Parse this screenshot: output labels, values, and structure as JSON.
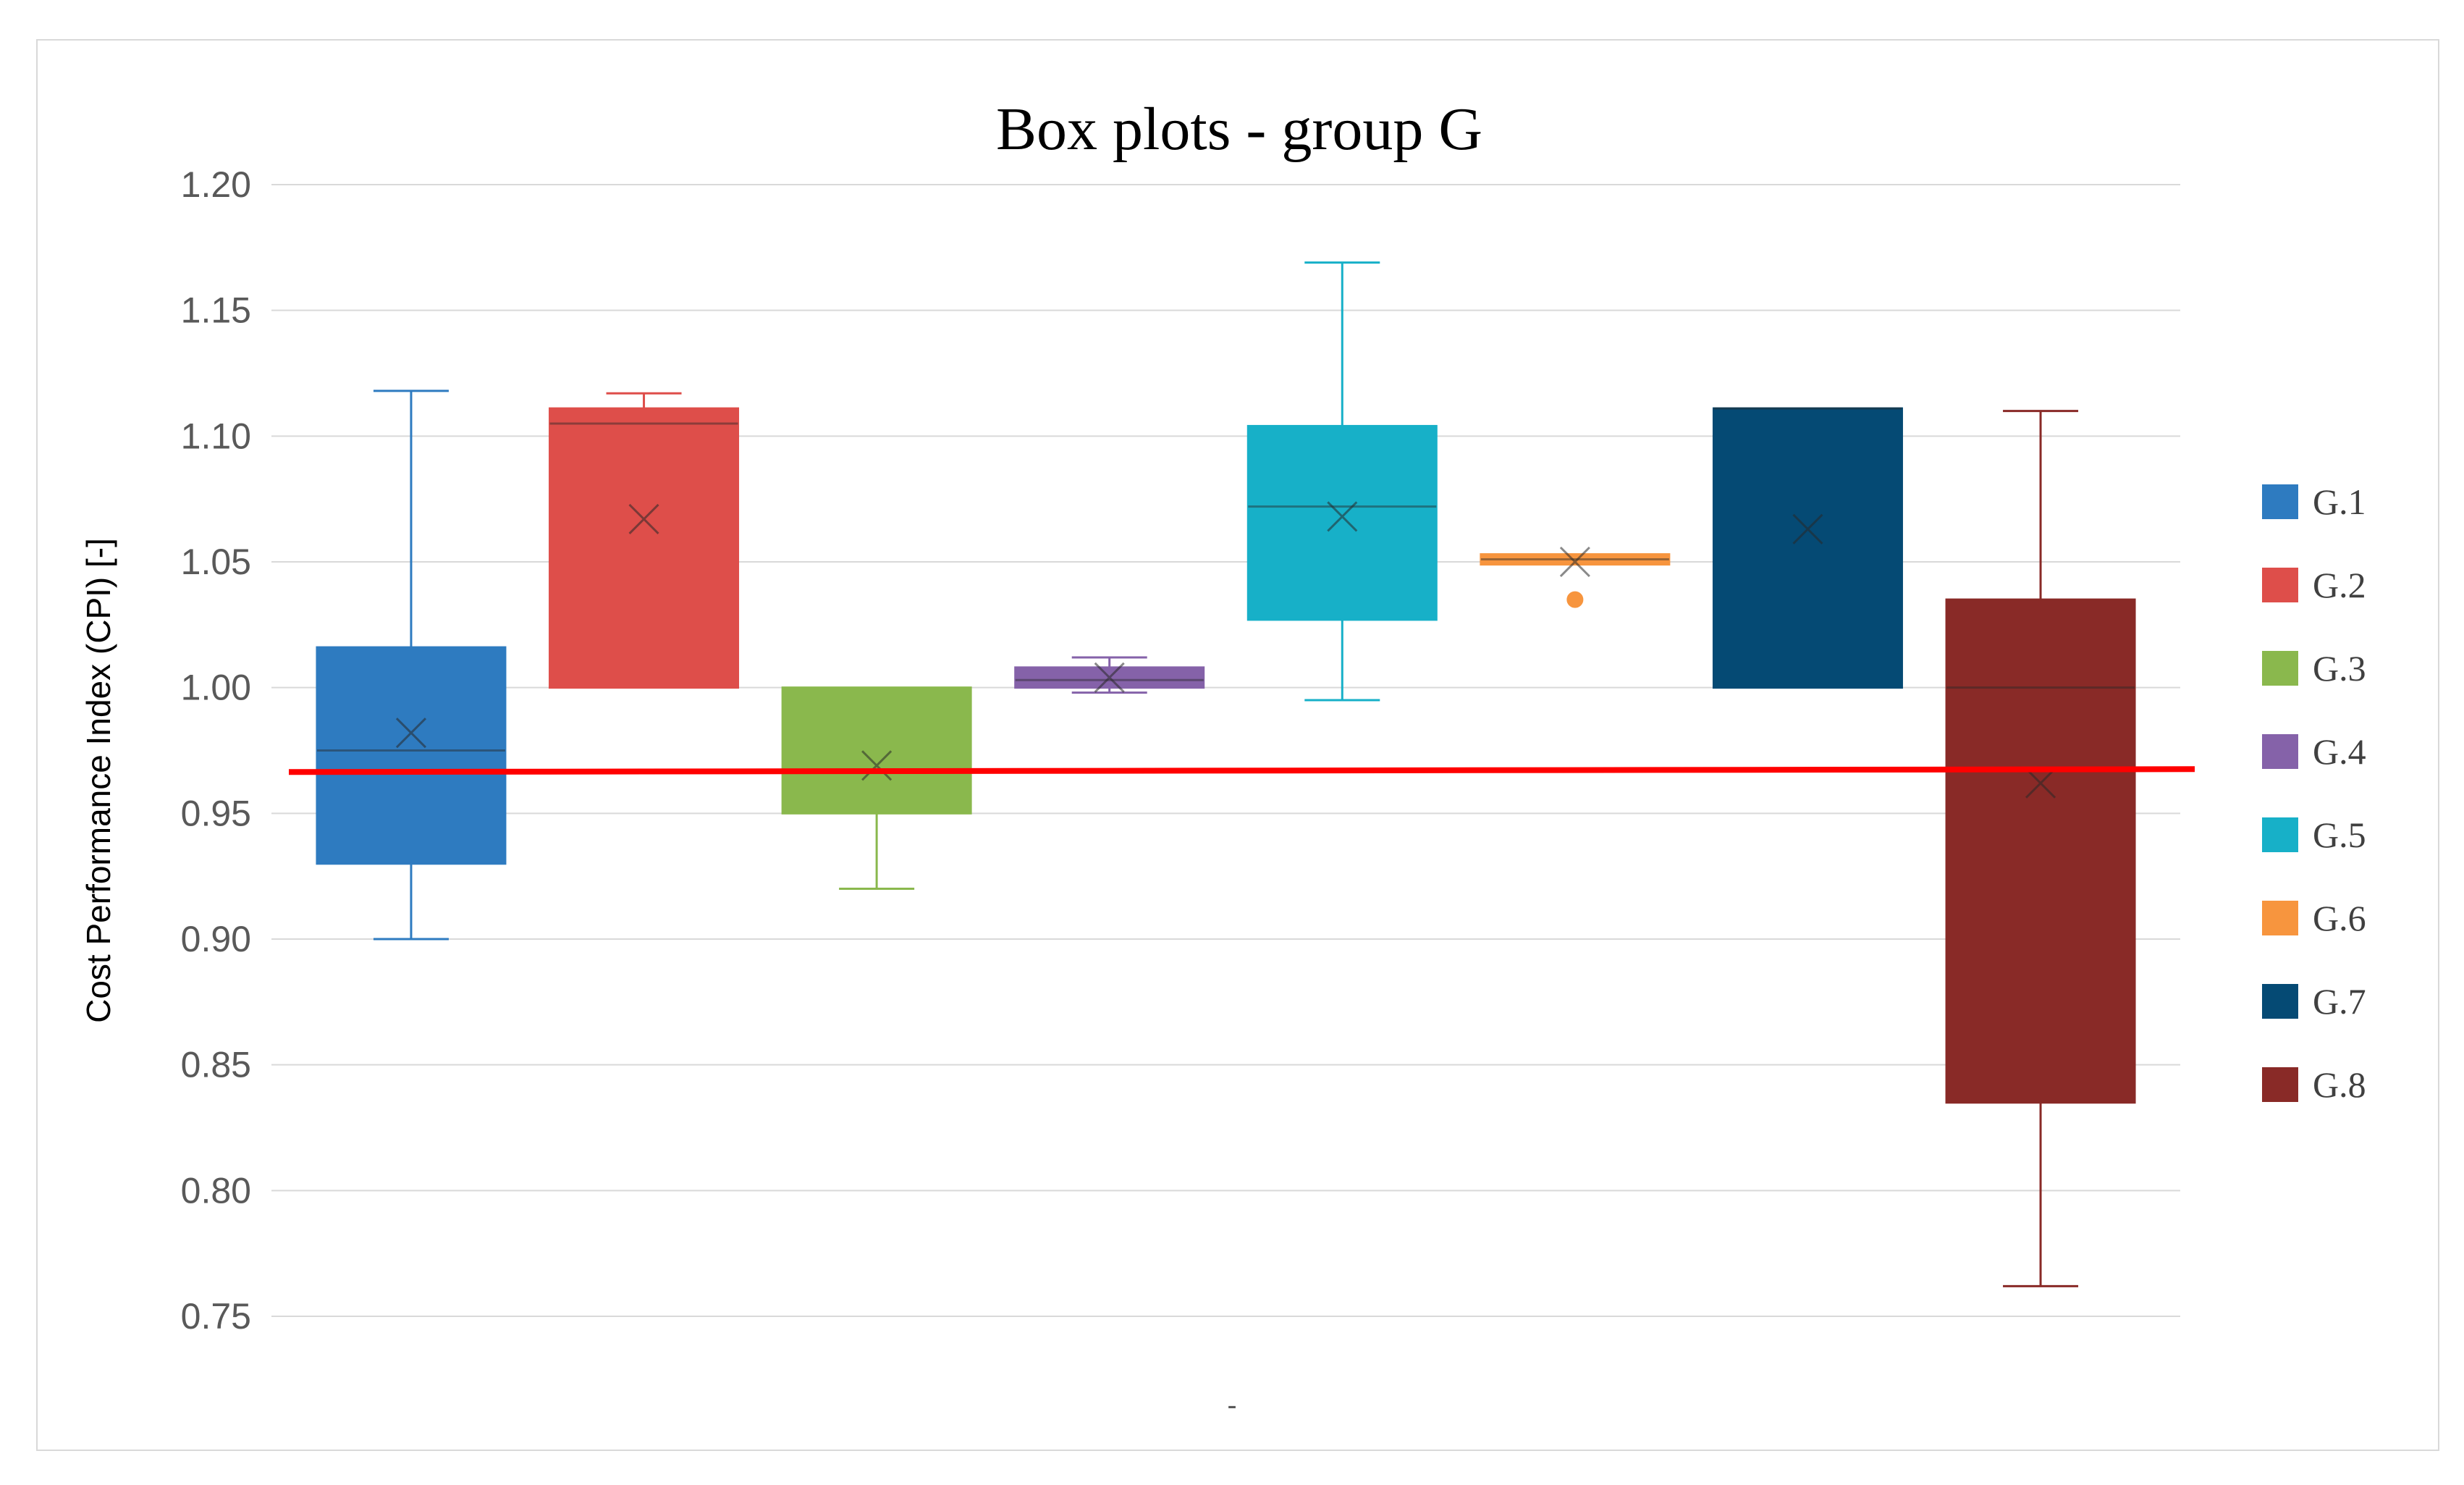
{
  "chart_data": {
    "type": "box",
    "title": "Box plots - group G",
    "xlabel": "-",
    "ylabel": "Cost Performance Index (CPI) [-]",
    "ylim": [
      0.75,
      1.2
    ],
    "yticks": [
      "0.75",
      "0.80",
      "0.85",
      "0.90",
      "0.95",
      "1.00",
      "1.05",
      "1.10",
      "1.15",
      "1.20"
    ],
    "grid": true,
    "legend_position": "right",
    "reference_line": {
      "y": 0.967,
      "color": "#ff0000"
    },
    "series": [
      {
        "name": "G.1",
        "color": "#2e7bc0",
        "min": 0.9,
        "q1": 0.93,
        "median": 0.975,
        "q3": 1.016,
        "max": 1.118,
        "mean": 0.982,
        "outliers": []
      },
      {
        "name": "G.2",
        "color": "#de4e4a",
        "min": 1.0,
        "q1": 1.0,
        "median": 1.105,
        "q3": 1.111,
        "max": 1.117,
        "mean": 1.067,
        "outliers": []
      },
      {
        "name": "G.3",
        "color": "#8ab84d",
        "min": 0.92,
        "q1": 0.95,
        "median": 0.967,
        "q3": 1.0,
        "max": 1.0,
        "mean": 0.969,
        "outliers": []
      },
      {
        "name": "G.4",
        "color": "#8562a9",
        "min": 0.998,
        "q1": 1.0,
        "median": 1.003,
        "q3": 1.008,
        "max": 1.012,
        "mean": 1.004,
        "outliers": []
      },
      {
        "name": "G.5",
        "color": "#17b0c8",
        "min": 0.995,
        "q1": 1.027,
        "median": 1.072,
        "q3": 1.104,
        "max": 1.169,
        "mean": 1.068,
        "outliers": []
      },
      {
        "name": "G.6",
        "color": "#f7953e",
        "min": 1.049,
        "q1": 1.049,
        "median": 1.051,
        "q3": 1.053,
        "max": 1.053,
        "mean": 1.05,
        "outliers": [
          1.035
        ]
      },
      {
        "name": "G.7",
        "color": "#054a74",
        "min": 1.0,
        "q1": 1.0,
        "median": 1.111,
        "q3": 1.111,
        "max": 1.111,
        "mean": 1.063,
        "outliers": []
      },
      {
        "name": "G.8",
        "color": "#892a27",
        "min": 0.762,
        "q1": 0.835,
        "median": 1.0,
        "q3": 1.035,
        "max": 1.11,
        "mean": 0.962,
        "outliers": []
      }
    ]
  }
}
